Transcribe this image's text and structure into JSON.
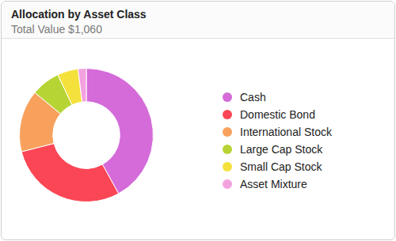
{
  "chart_data": {
    "type": "doughnut",
    "title": "Allocation by Asset Class",
    "subtitle": "Total Value $1,060",
    "categories": [
      "Cash",
      "Domestic Bond",
      "International Stock",
      "Large Cap Stock",
      "Small Cap Stock",
      "Asset Mixture"
    ],
    "values": [
      42,
      29,
      15,
      7,
      5,
      2
    ],
    "colors": [
      "#d46bd9",
      "#fa4655",
      "#f8a15c",
      "#b7d435",
      "#f4e13b",
      "#f4a2df"
    ],
    "legend": "right"
  }
}
